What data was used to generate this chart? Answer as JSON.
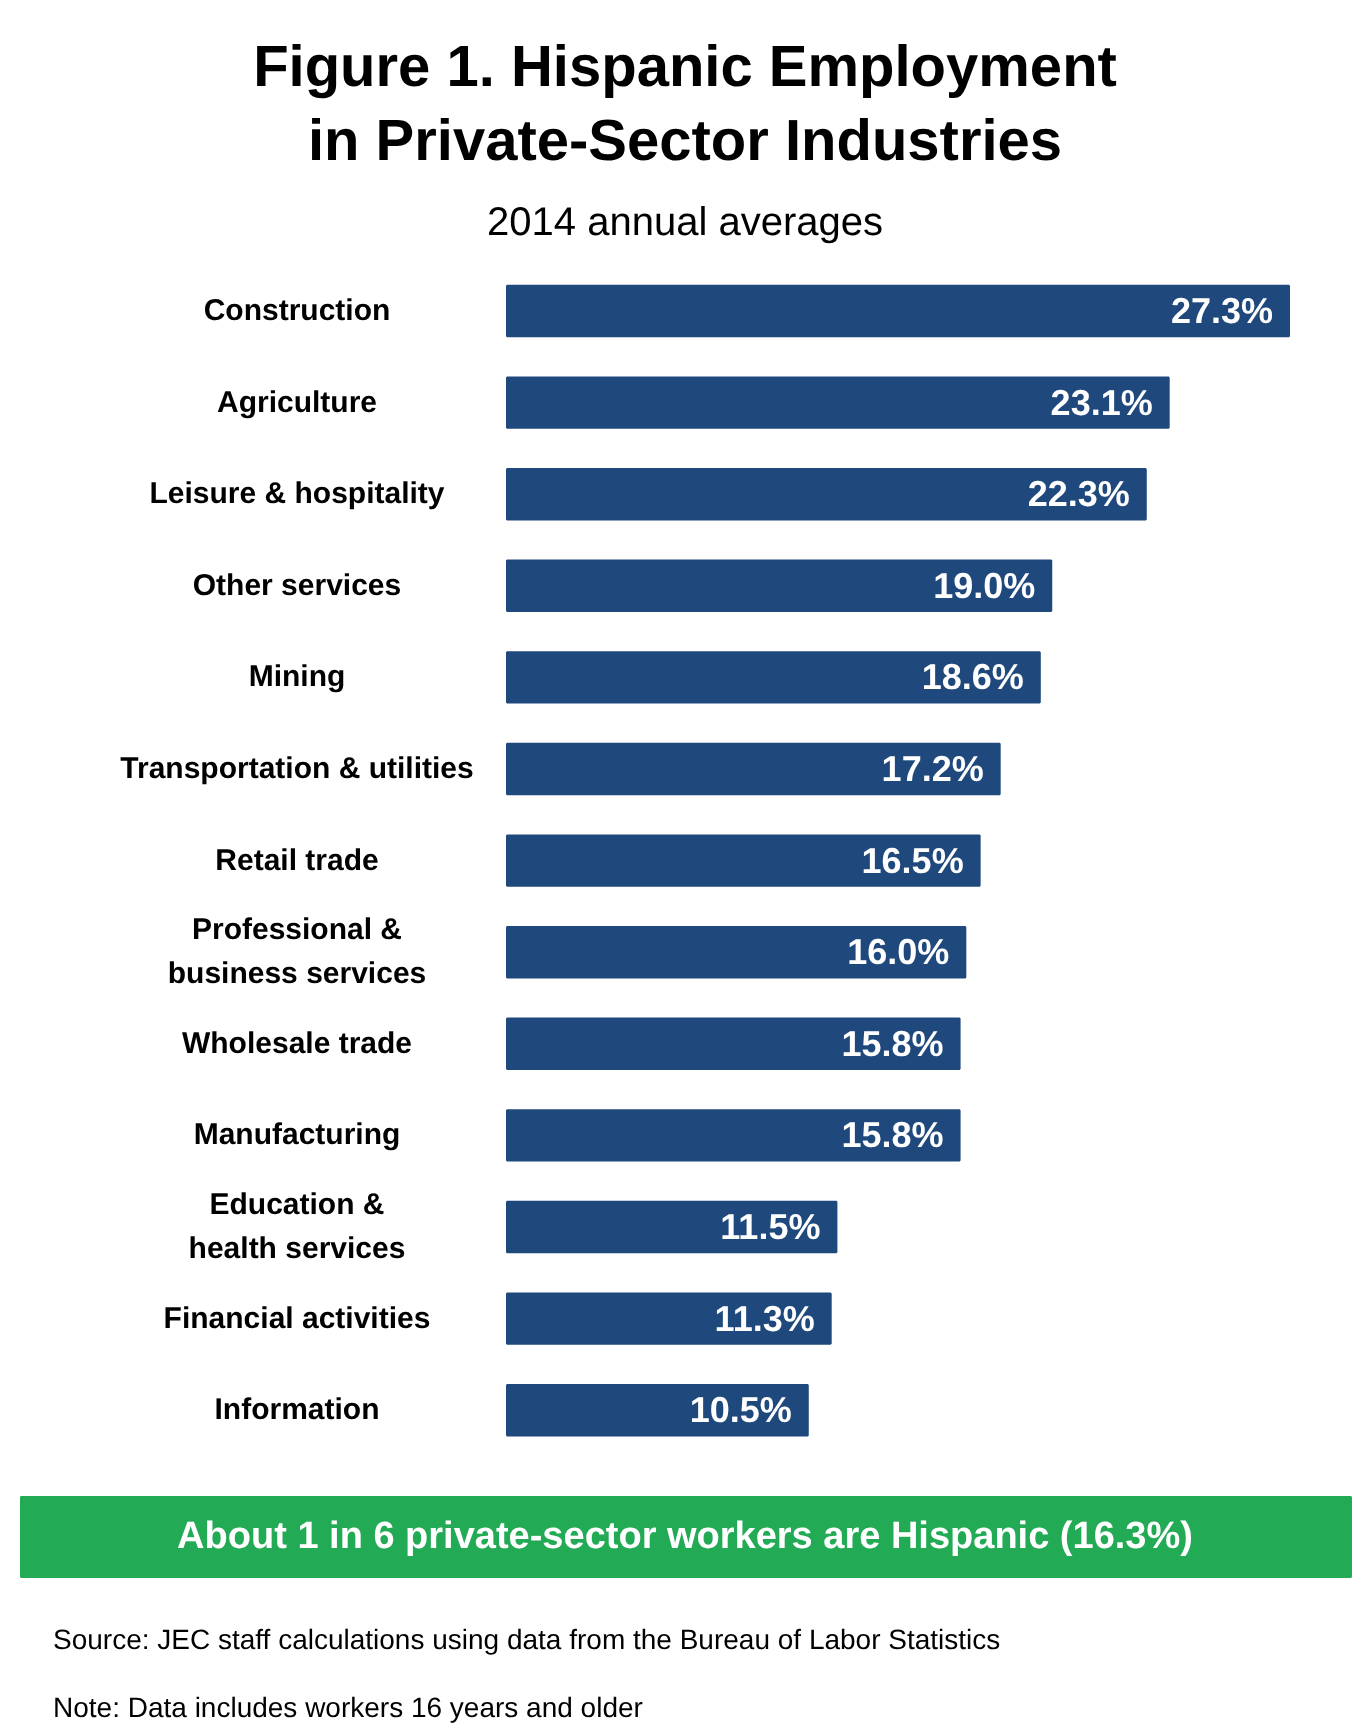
{
  "chart_data": {
    "type": "bar",
    "orientation": "horizontal",
    "title": "Figure 1. Hispanic Employment\nin Private-Sector Industries",
    "subtitle": "2014 annual averages",
    "categories": [
      "Construction",
      "Agriculture",
      "Leisure & hospitality",
      "Other services",
      "Mining",
      "Transportation & utilities",
      "Retail trade",
      "Professional &\nbusiness services",
      "Wholesale trade",
      "Manufacturing",
      "Education &\nhealth services",
      "Financial activities",
      "Information"
    ],
    "values": [
      27.3,
      23.1,
      22.3,
      19.0,
      18.6,
      17.2,
      16.5,
      16.0,
      15.8,
      15.8,
      11.5,
      11.3,
      10.5
    ],
    "value_labels": [
      "27.3%",
      "23.1%",
      "22.3%",
      "19.0%",
      "18.6%",
      "17.2%",
      "16.5%",
      "16.0%",
      "15.8%",
      "15.8%",
      "11.5%",
      "11.3%",
      "10.5%"
    ],
    "color": "#1f497d",
    "annotations": [
      "About 1 in 6 private-sector workers are Hispanic (16.3%)",
      "Source: JEC staff calculations using data from the Bureau of Labor Statistics",
      "Note: Data includes workers 16 years and older"
    ],
    "grid": false
  }
}
